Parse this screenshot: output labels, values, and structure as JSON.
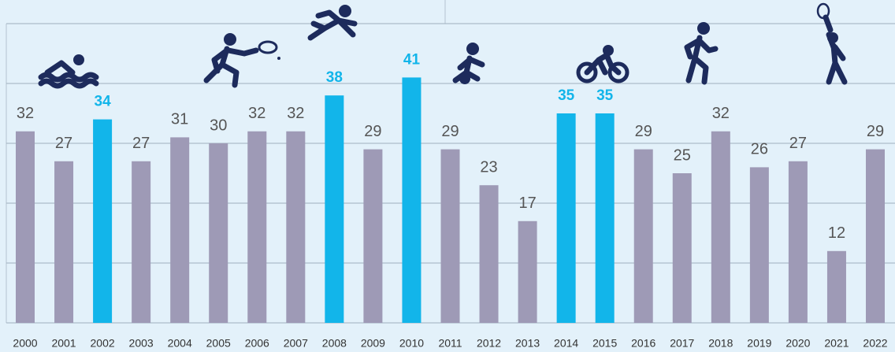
{
  "chart_data": {
    "type": "bar",
    "categories": [
      "2000",
      "2001",
      "2002",
      "2003",
      "2004",
      "2005",
      "2006",
      "2007",
      "2008",
      "2009",
      "2010",
      "2011",
      "2012",
      "2013",
      "2014",
      "2015",
      "2016",
      "2017",
      "2018",
      "2019",
      "2020",
      "2021",
      "2022"
    ],
    "values": [
      32,
      27,
      34,
      27,
      31,
      30,
      32,
      32,
      38,
      29,
      41,
      29,
      23,
      17,
      35,
      35,
      29,
      25,
      32,
      26,
      27,
      12,
      29
    ],
    "colors": [
      "#9e9ab6",
      "#9e9ab6",
      "#12b5ea",
      "#9e9ab6",
      "#9e9ab6",
      "#9e9ab6",
      "#9e9ab6",
      "#9e9ab6",
      "#12b5ea",
      "#9e9ab6",
      "#12b5ea",
      "#9e9ab6",
      "#9e9ab6",
      "#9e9ab6",
      "#12b5ea",
      "#12b5ea",
      "#9e9ab6",
      "#9e9ab6",
      "#9e9ab6",
      "#9e9ab6",
      "#9e9ab6",
      "#9e9ab6",
      "#9e9ab6"
    ],
    "ylim": [
      0,
      50
    ],
    "yticks": [
      0,
      10,
      20,
      30,
      40,
      50
    ],
    "grid": true
  }
}
